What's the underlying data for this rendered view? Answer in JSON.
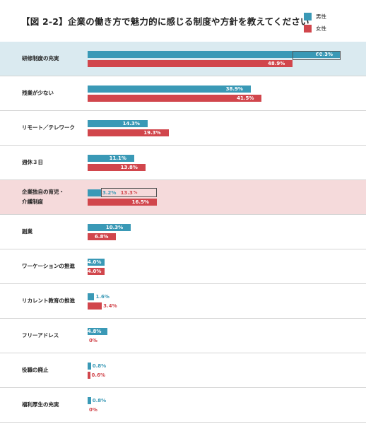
{
  "title": "【図 2-2】企業の働き方で魅力的に感じる制度や方針を教えてください",
  "legend": {
    "male": {
      "label": "男性",
      "color": "#3a99b6"
    },
    "female": {
      "label": "女性",
      "color": "#d1464c"
    }
  },
  "chart_data": {
    "type": "bar",
    "orientation": "horizontal",
    "title": "【図 2-2】企業の働き方で魅力的に感じる制度や方針を教えてください",
    "categories": [
      "研修制度の充実",
      "残業が少ない",
      "リモート／テレワーク",
      "週休３日",
      "企業独自の育児・\n介護制度",
      "副業",
      "ワーケーションの推進",
      "リカレント教育の推進",
      "フリーアドレス",
      "役職の廃止",
      "福利厚生の充実"
    ],
    "series": [
      {
        "name": "男性",
        "color": "#3a99b6",
        "values": [
          60.3,
          38.9,
          14.3,
          11.1,
          3.2,
          10.3,
          4.0,
          1.6,
          4.8,
          0.8,
          0.8
        ],
        "labels": [
          "60.3%",
          "38.9%",
          "14.3%",
          "11.1%",
          "3.2%",
          "10.3%",
          "4.0%",
          "1.6%",
          "4.8%",
          "0.8%",
          "0.8%"
        ]
      },
      {
        "name": "女性",
        "color": "#d1464c",
        "values": [
          48.9,
          41.5,
          19.3,
          13.8,
          16.5,
          6.8,
          4.0,
          3.4,
          0,
          0.6,
          0
        ],
        "labels": [
          "48.9%",
          "41.5%",
          "19.3%",
          "13.8%",
          "16.5%",
          "6.8%",
          "4.0%",
          "3.4%",
          "0%",
          "0.6%",
          "0%"
        ]
      }
    ],
    "highlights": [
      {
        "category_index": 0,
        "style": "blue",
        "difference": "11.5",
        "unit": "%"
      },
      {
        "category_index": 4,
        "style": "pink",
        "difference": "13.3",
        "unit": "%"
      }
    ]
  }
}
